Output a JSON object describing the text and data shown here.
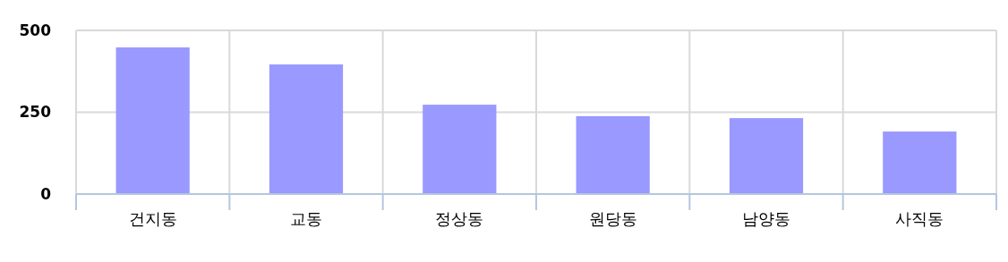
{
  "chart_data": {
    "type": "bar",
    "categories": [
      "건지동",
      "교동",
      "정상동",
      "원당동",
      "남양동",
      "사직동"
    ],
    "values": [
      448,
      396,
      273,
      238,
      232,
      191
    ],
    "color": "#9999ff",
    "ylim": [
      0,
      500
    ],
    "yticks": [
      0,
      250,
      500
    ],
    "grid": true
  }
}
